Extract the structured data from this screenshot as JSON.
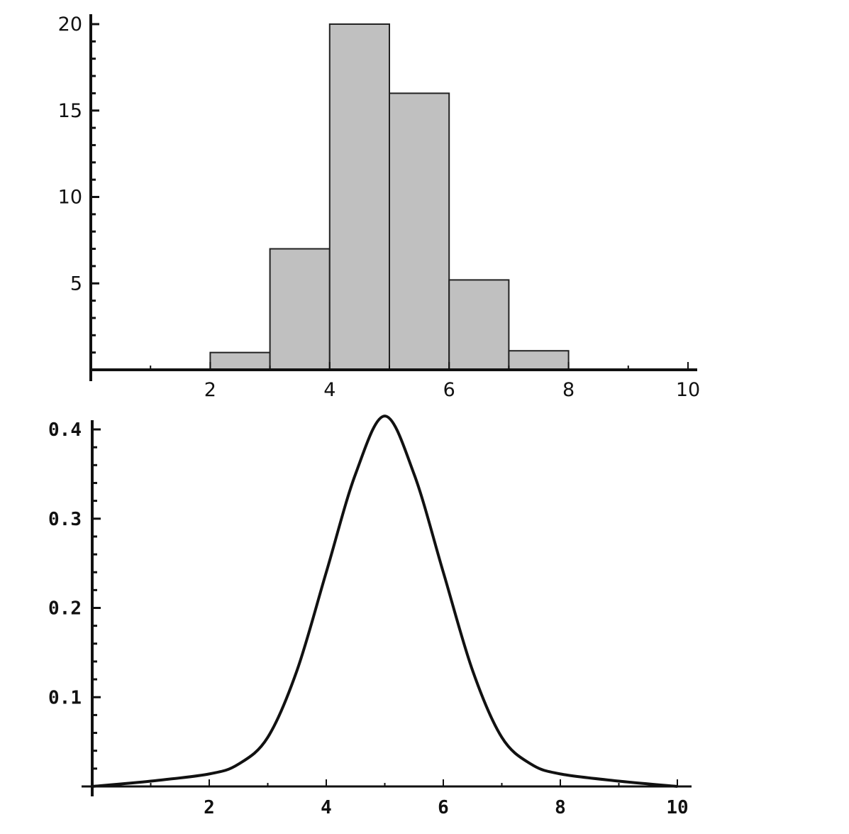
{
  "chart_data": [
    {
      "type": "bar",
      "title": "",
      "xlabel": "",
      "ylabel": "",
      "bins": [
        {
          "x0": 2,
          "x1": 3,
          "value": 1
        },
        {
          "x0": 3,
          "x1": 4,
          "value": 7
        },
        {
          "x0": 4,
          "x1": 5,
          "value": 20
        },
        {
          "x0": 5,
          "x1": 6,
          "value": 16
        },
        {
          "x0": 6,
          "x1": 7,
          "value": 5.2
        },
        {
          "x0": 7,
          "x1": 8,
          "value": 1.1
        }
      ],
      "xlim": [
        0,
        10
      ],
      "ylim": [
        0,
        20
      ],
      "x_ticks": [
        2,
        4,
        6,
        8,
        10
      ],
      "y_ticks": [
        5,
        10,
        15,
        20
      ],
      "bar_color": "#c0c0c0",
      "grid": false
    },
    {
      "type": "line",
      "title": "",
      "xlabel": "",
      "ylabel": "",
      "curve": "density peaked at x=5",
      "x": [
        0,
        1,
        2,
        2.5,
        3,
        3.5,
        4,
        4.5,
        5,
        5.5,
        6,
        6.5,
        7,
        7.5,
        8,
        9,
        10
      ],
      "y": [
        0.0,
        0.006,
        0.014,
        0.025,
        0.055,
        0.13,
        0.24,
        0.35,
        0.415,
        0.35,
        0.24,
        0.13,
        0.055,
        0.025,
        0.014,
        0.006,
        0.0
      ],
      "xlim": [
        0,
        10
      ],
      "ylim": [
        0,
        0.42
      ],
      "x_ticks": [
        2,
        4,
        6,
        8,
        10
      ],
      "y_ticks": [
        0.1,
        0.2,
        0.3,
        0.4
      ],
      "line_color": "#111111",
      "grid": false
    }
  ]
}
